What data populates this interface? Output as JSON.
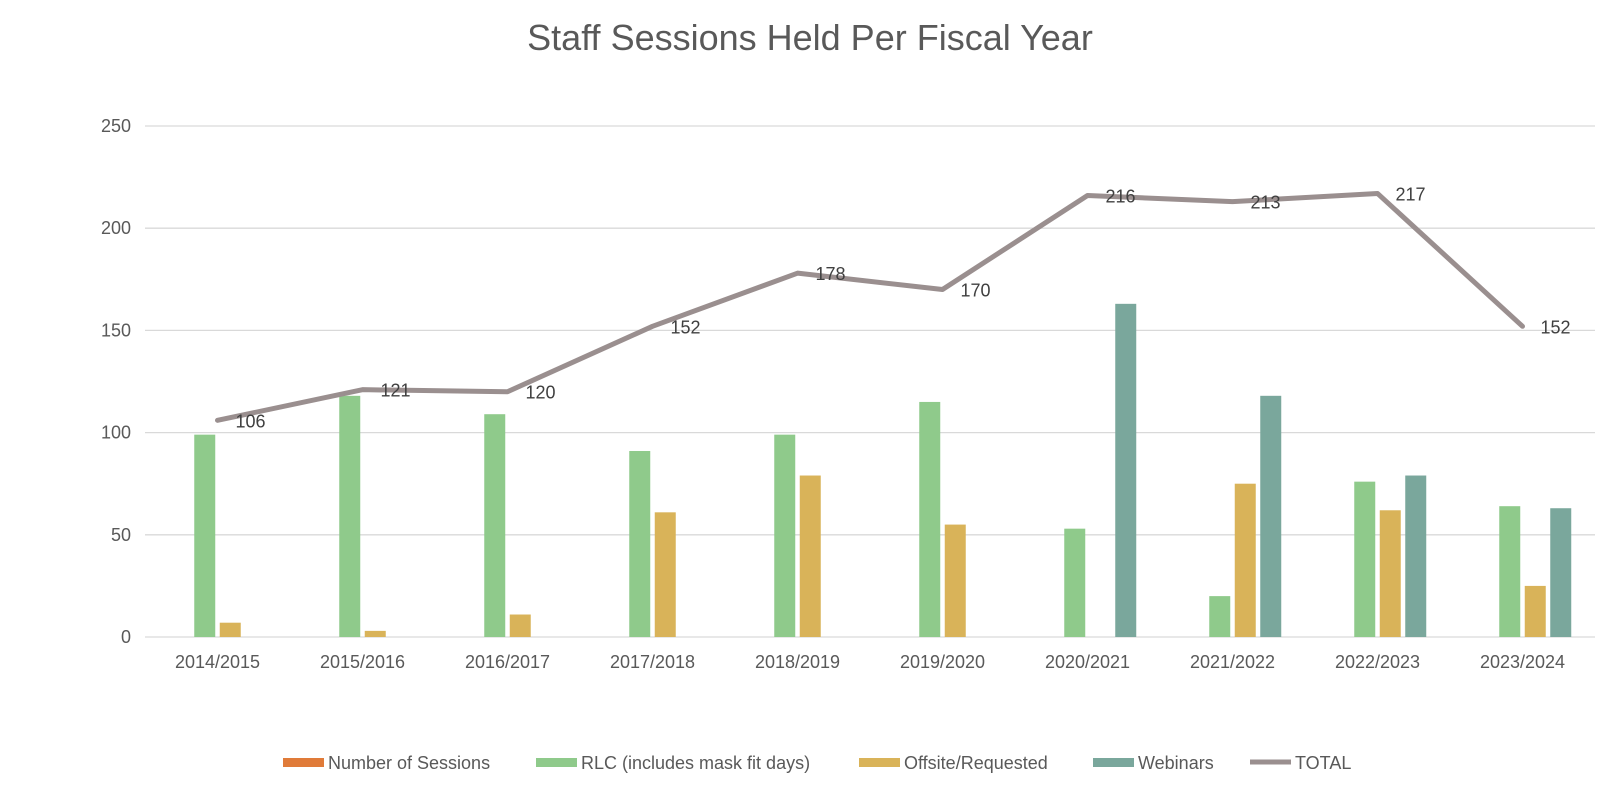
{
  "chart_data": {
    "type": "bar",
    "title": "Staff Sessions Held Per Fiscal Year",
    "xlabel": "",
    "ylabel": "",
    "ylim": [
      0,
      250
    ],
    "yticks": [
      0,
      50,
      100,
      150,
      200,
      250
    ],
    "grid": true,
    "legend_position": "bottom",
    "categories": [
      "2014/2015",
      "2015/2016",
      "2016/2017",
      "2017/2018",
      "2018/2019",
      "2019/2020",
      "2020/2021",
      "2021/2022",
      "2022/2023",
      "2023/2024"
    ],
    "series": [
      {
        "name": "Number of Sessions",
        "type": "bar",
        "color": "#e07b39",
        "values": [
          0,
          0,
          0,
          0,
          0,
          0,
          0,
          0,
          0,
          0
        ]
      },
      {
        "name": "RLC (includes mask fit days)",
        "type": "bar",
        "color": "#8fca8b",
        "values": [
          99,
          118,
          109,
          91,
          99,
          115,
          53,
          20,
          76,
          64
        ]
      },
      {
        "name": "Offsite/Requested",
        "type": "bar",
        "color": "#d9b359",
        "values": [
          7,
          3,
          11,
          61,
          79,
          55,
          0,
          75,
          62,
          25
        ]
      },
      {
        "name": "Webinars",
        "type": "bar",
        "color": "#7aa79c",
        "values": [
          0,
          0,
          0,
          0,
          0,
          0,
          163,
          118,
          79,
          63
        ]
      },
      {
        "name": "TOTAL",
        "type": "line",
        "color": "#9a8f8f",
        "values": [
          106,
          121,
          120,
          152,
          178,
          170,
          216,
          213,
          217,
          152
        ],
        "data_labels": [
          "106",
          "121",
          "120",
          "152",
          "178",
          "170",
          "216",
          "213",
          "217",
          "152"
        ]
      }
    ]
  }
}
